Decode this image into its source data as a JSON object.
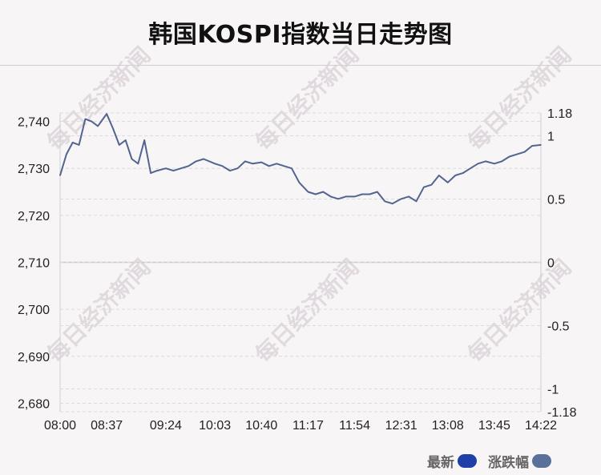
{
  "title": "韩国KOSPI指数当日走势图",
  "watermark_text": "每日经济新闻",
  "legend": [
    {
      "label": "最新",
      "color": "#1f3fa8"
    },
    {
      "label": "涨跌幅",
      "color": "#5a6f9a"
    }
  ],
  "colors": {
    "line": "#52648f",
    "background": "#f8f5f7",
    "grid": "#dcdcdc",
    "zero_line": "#c8c8c8"
  },
  "chart_data": {
    "type": "line",
    "title": "韩国KOSPI指数当日走势图",
    "x_ticks": [
      "08:00",
      "08:37",
      "09:24",
      "10:03",
      "10:40",
      "11:17",
      "11:54",
      "12:31",
      "13:08",
      "13:45",
      "14:22"
    ],
    "y_left_ticks": [
      "2,740",
      "2,730",
      "2,720",
      "2,710",
      "2,700",
      "2,690",
      "2,680"
    ],
    "y_left_values": [
      2740,
      2730,
      2720,
      2710,
      2700,
      2690,
      2680
    ],
    "y_right_ticks": [
      "1.18",
      "1",
      "0.5",
      "0",
      "-0.5",
      "-1",
      "-1.18"
    ],
    "y_right_values": [
      1.18,
      1,
      0.5,
      0,
      -0.5,
      -1,
      -1.18
    ],
    "ylim_left": [
      2678.2,
      2741.8
    ],
    "ylim_right": [
      -1.18,
      1.18
    ],
    "grid": true,
    "legend_position": "bottom-right",
    "series": [
      {
        "name": "最新",
        "x": [
          "08:00",
          "08:05",
          "08:10",
          "08:15",
          "08:20",
          "08:25",
          "08:30",
          "08:37",
          "08:42",
          "08:47",
          "08:52",
          "08:57",
          "09:02",
          "09:07",
          "09:12",
          "09:17",
          "09:24",
          "09:30",
          "09:36",
          "09:42",
          "09:48",
          "09:54",
          "10:03",
          "10:09",
          "10:15",
          "10:21",
          "10:27",
          "10:33",
          "10:40",
          "10:46",
          "10:52",
          "10:58",
          "11:04",
          "11:10",
          "11:17",
          "11:23",
          "11:29",
          "11:35",
          "11:41",
          "11:47",
          "11:54",
          "12:00",
          "12:06",
          "12:12",
          "12:18",
          "12:24",
          "12:31",
          "12:37",
          "12:43",
          "12:49",
          "12:55",
          "13:01",
          "13:08",
          "13:14",
          "13:20",
          "13:26",
          "13:32",
          "13:38",
          "13:45",
          "13:51",
          "13:57",
          "14:03",
          "14:09",
          "14:15",
          "14:22"
        ],
        "values": [
          2728.5,
          2733,
          2735.5,
          2735,
          2740.5,
          2740,
          2739,
          2741.6,
          2738.5,
          2735,
          2736,
          2732,
          2731,
          2736,
          2729,
          2729.5,
          2730,
          2729.5,
          2730,
          2730.5,
          2731.5,
          2732,
          2731,
          2730.5,
          2729.5,
          2730,
          2731.5,
          2731,
          2731.3,
          2730.5,
          2731,
          2730.5,
          2730,
          2727,
          2725,
          2724.5,
          2725,
          2724,
          2723.5,
          2724,
          2724,
          2724.5,
          2724.5,
          2725,
          2723,
          2722.5,
          2723.5,
          2724,
          2723,
          2726,
          2726.5,
          2728.5,
          2727,
          2728.5,
          2729,
          2730,
          2731,
          2731.5,
          2731,
          2731.5,
          2732.5,
          2733,
          2733.5,
          2734.8,
          2735
        ]
      }
    ]
  }
}
